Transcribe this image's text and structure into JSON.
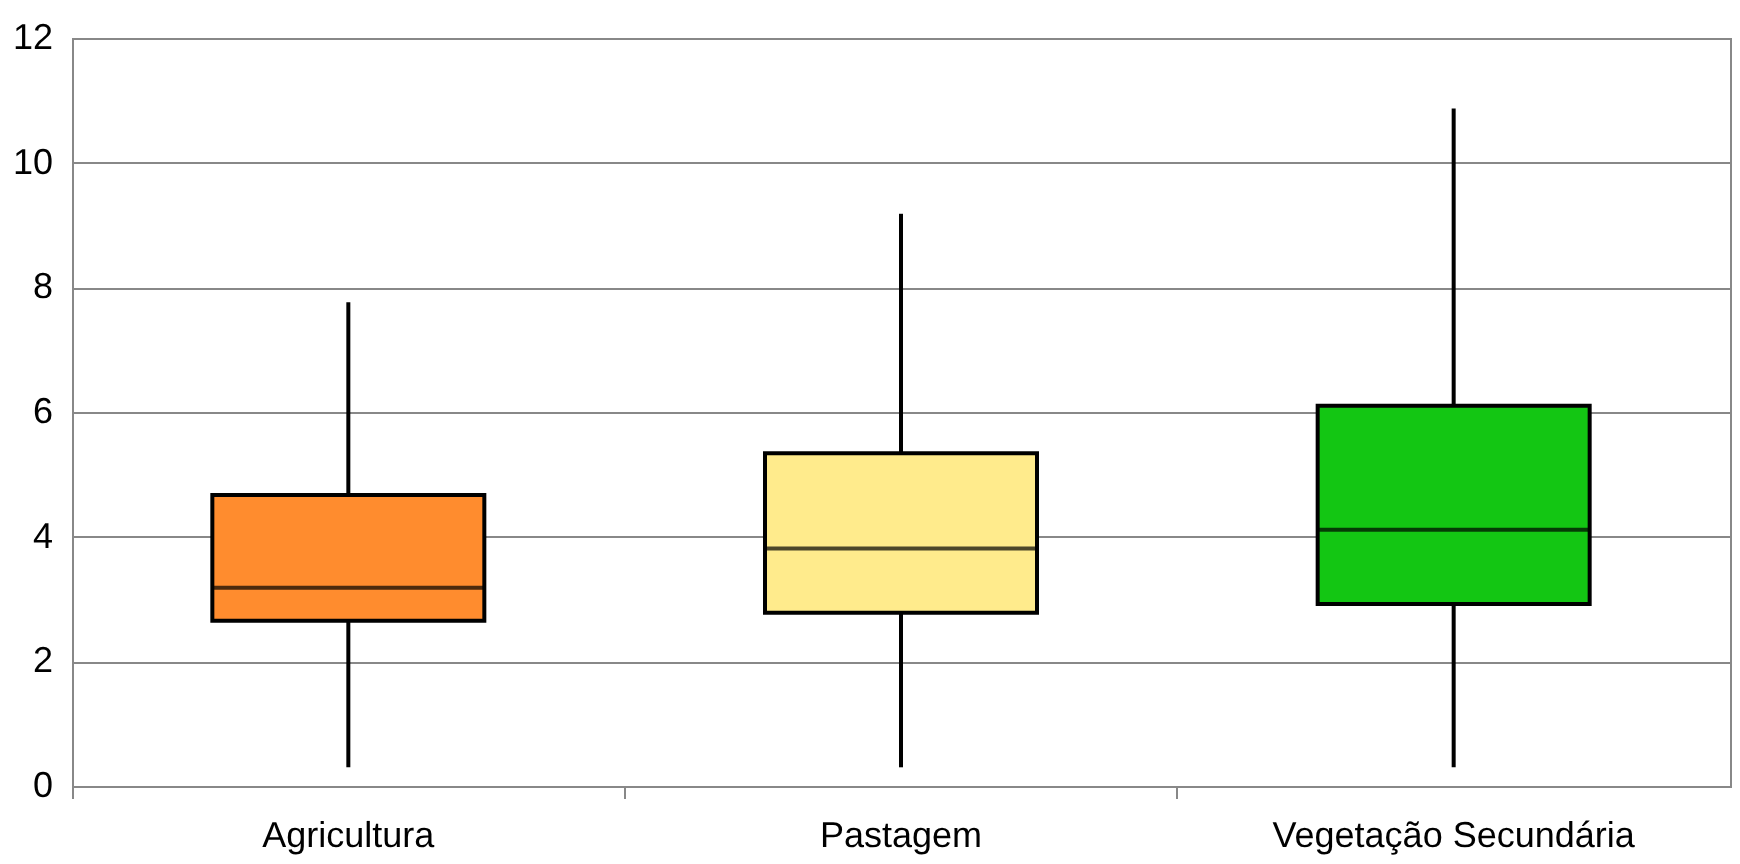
{
  "chart_data": {
    "type": "box",
    "categories": [
      "Agricultura",
      "Pastagem",
      "Vegetação Secundária"
    ],
    "boxes": [
      {
        "low": 0.3,
        "q1": 2.65,
        "median": 3.18,
        "q3": 4.67,
        "high": 7.76
      },
      {
        "low": 0.3,
        "q1": 2.78,
        "median": 3.81,
        "q3": 5.34,
        "high": 9.18
      },
      {
        "low": 0.3,
        "q1": 2.92,
        "median": 4.11,
        "q3": 6.1,
        "high": 10.87
      }
    ],
    "colors": [
      "#ff8c2e",
      "#ffeb8c",
      "#13c613"
    ],
    "ylim": [
      0,
      12
    ],
    "yticks": [
      0,
      2,
      4,
      6,
      8,
      10,
      12
    ],
    "grid": "y"
  }
}
